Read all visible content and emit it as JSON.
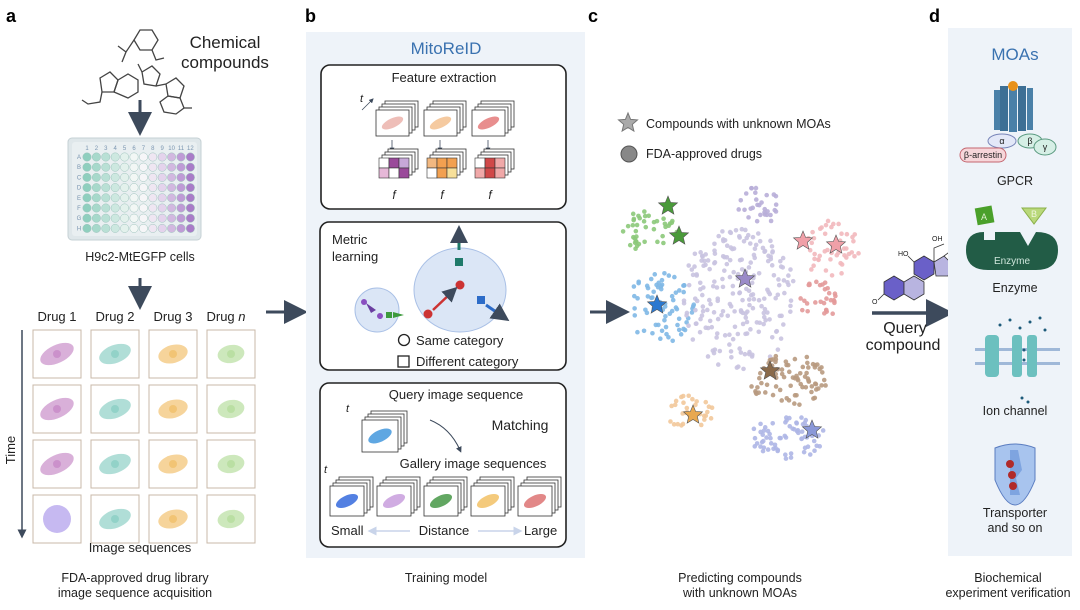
{
  "panels": {
    "a": {
      "label": "a",
      "chemical_line1": "Chemical",
      "chemical_line2": "compounds",
      "plate_label": "H9c2-MtEGFP cells",
      "plate_cols": [
        "1",
        "2",
        "3",
        "4",
        "5",
        "6",
        "7",
        "8",
        "9",
        "10",
        "11",
        "12"
      ],
      "plate_rows": [
        "A",
        "B",
        "C",
        "D",
        "E",
        "F",
        "G",
        "H"
      ],
      "drugs": [
        "Drug 1",
        "Drug 2",
        "Drug 3",
        "Drug "
      ],
      "drug_n": "n",
      "time_label": "Time",
      "sequences_label": "Image sequences",
      "caption_line1": "FDA-approved drug library",
      "caption_line2": "image sequence acquisition"
    },
    "b": {
      "label": "b",
      "title": "MitoReID",
      "feature_extraction": "Feature extraction",
      "t": "t",
      "f": "f",
      "metric_line1": "Metric",
      "metric_line2": "learning",
      "same_category": "Same category",
      "different_category": "Different category",
      "query_sequence": "Query image sequence",
      "matching": "Matching",
      "gallery_sequences": "Gallery image sequences",
      "small": "Small",
      "distance": "Distance",
      "large": "Large",
      "caption": "Training model"
    },
    "c": {
      "label": "c",
      "legend_unknown": "Compounds with unknown MOAs",
      "legend_fda": "FDA-approved drugs",
      "caption_line1": "Predicting compounds",
      "caption_line2": "with unknown MOAs",
      "cluster_colors": [
        "#8cc97a",
        "#7fb8e6",
        "#c9c3e0",
        "#b8aed8",
        "#f2b8bd",
        "#e39a9a",
        "#b89a80",
        "#f2c89a",
        "#aeb6e6"
      ]
    },
    "query": {
      "line1": "Query",
      "line2": "compound",
      "oh": "OH",
      "ho": "HO",
      "o": "O"
    },
    "d": {
      "label": "d",
      "title": "MOAs",
      "alpha": "α",
      "beta": "β",
      "gamma": "γ",
      "arrestin": "β-arrestin",
      "gpcr": "GPCR",
      "enzyme_a": "A",
      "enzyme_b": "B",
      "enzyme_inner": "Enzyme",
      "enzyme": "Enzyme",
      "ion_channel": "Ion channel",
      "transporter_line1": "Transporter",
      "transporter_line2": "and so on",
      "caption_line1": "Biochemical",
      "caption_line2": "experiment verification"
    }
  },
  "colors": {
    "accent_blue": "#3a72b0",
    "arrow": "#3d4a5c",
    "panel_bg": "#eef3f9"
  }
}
